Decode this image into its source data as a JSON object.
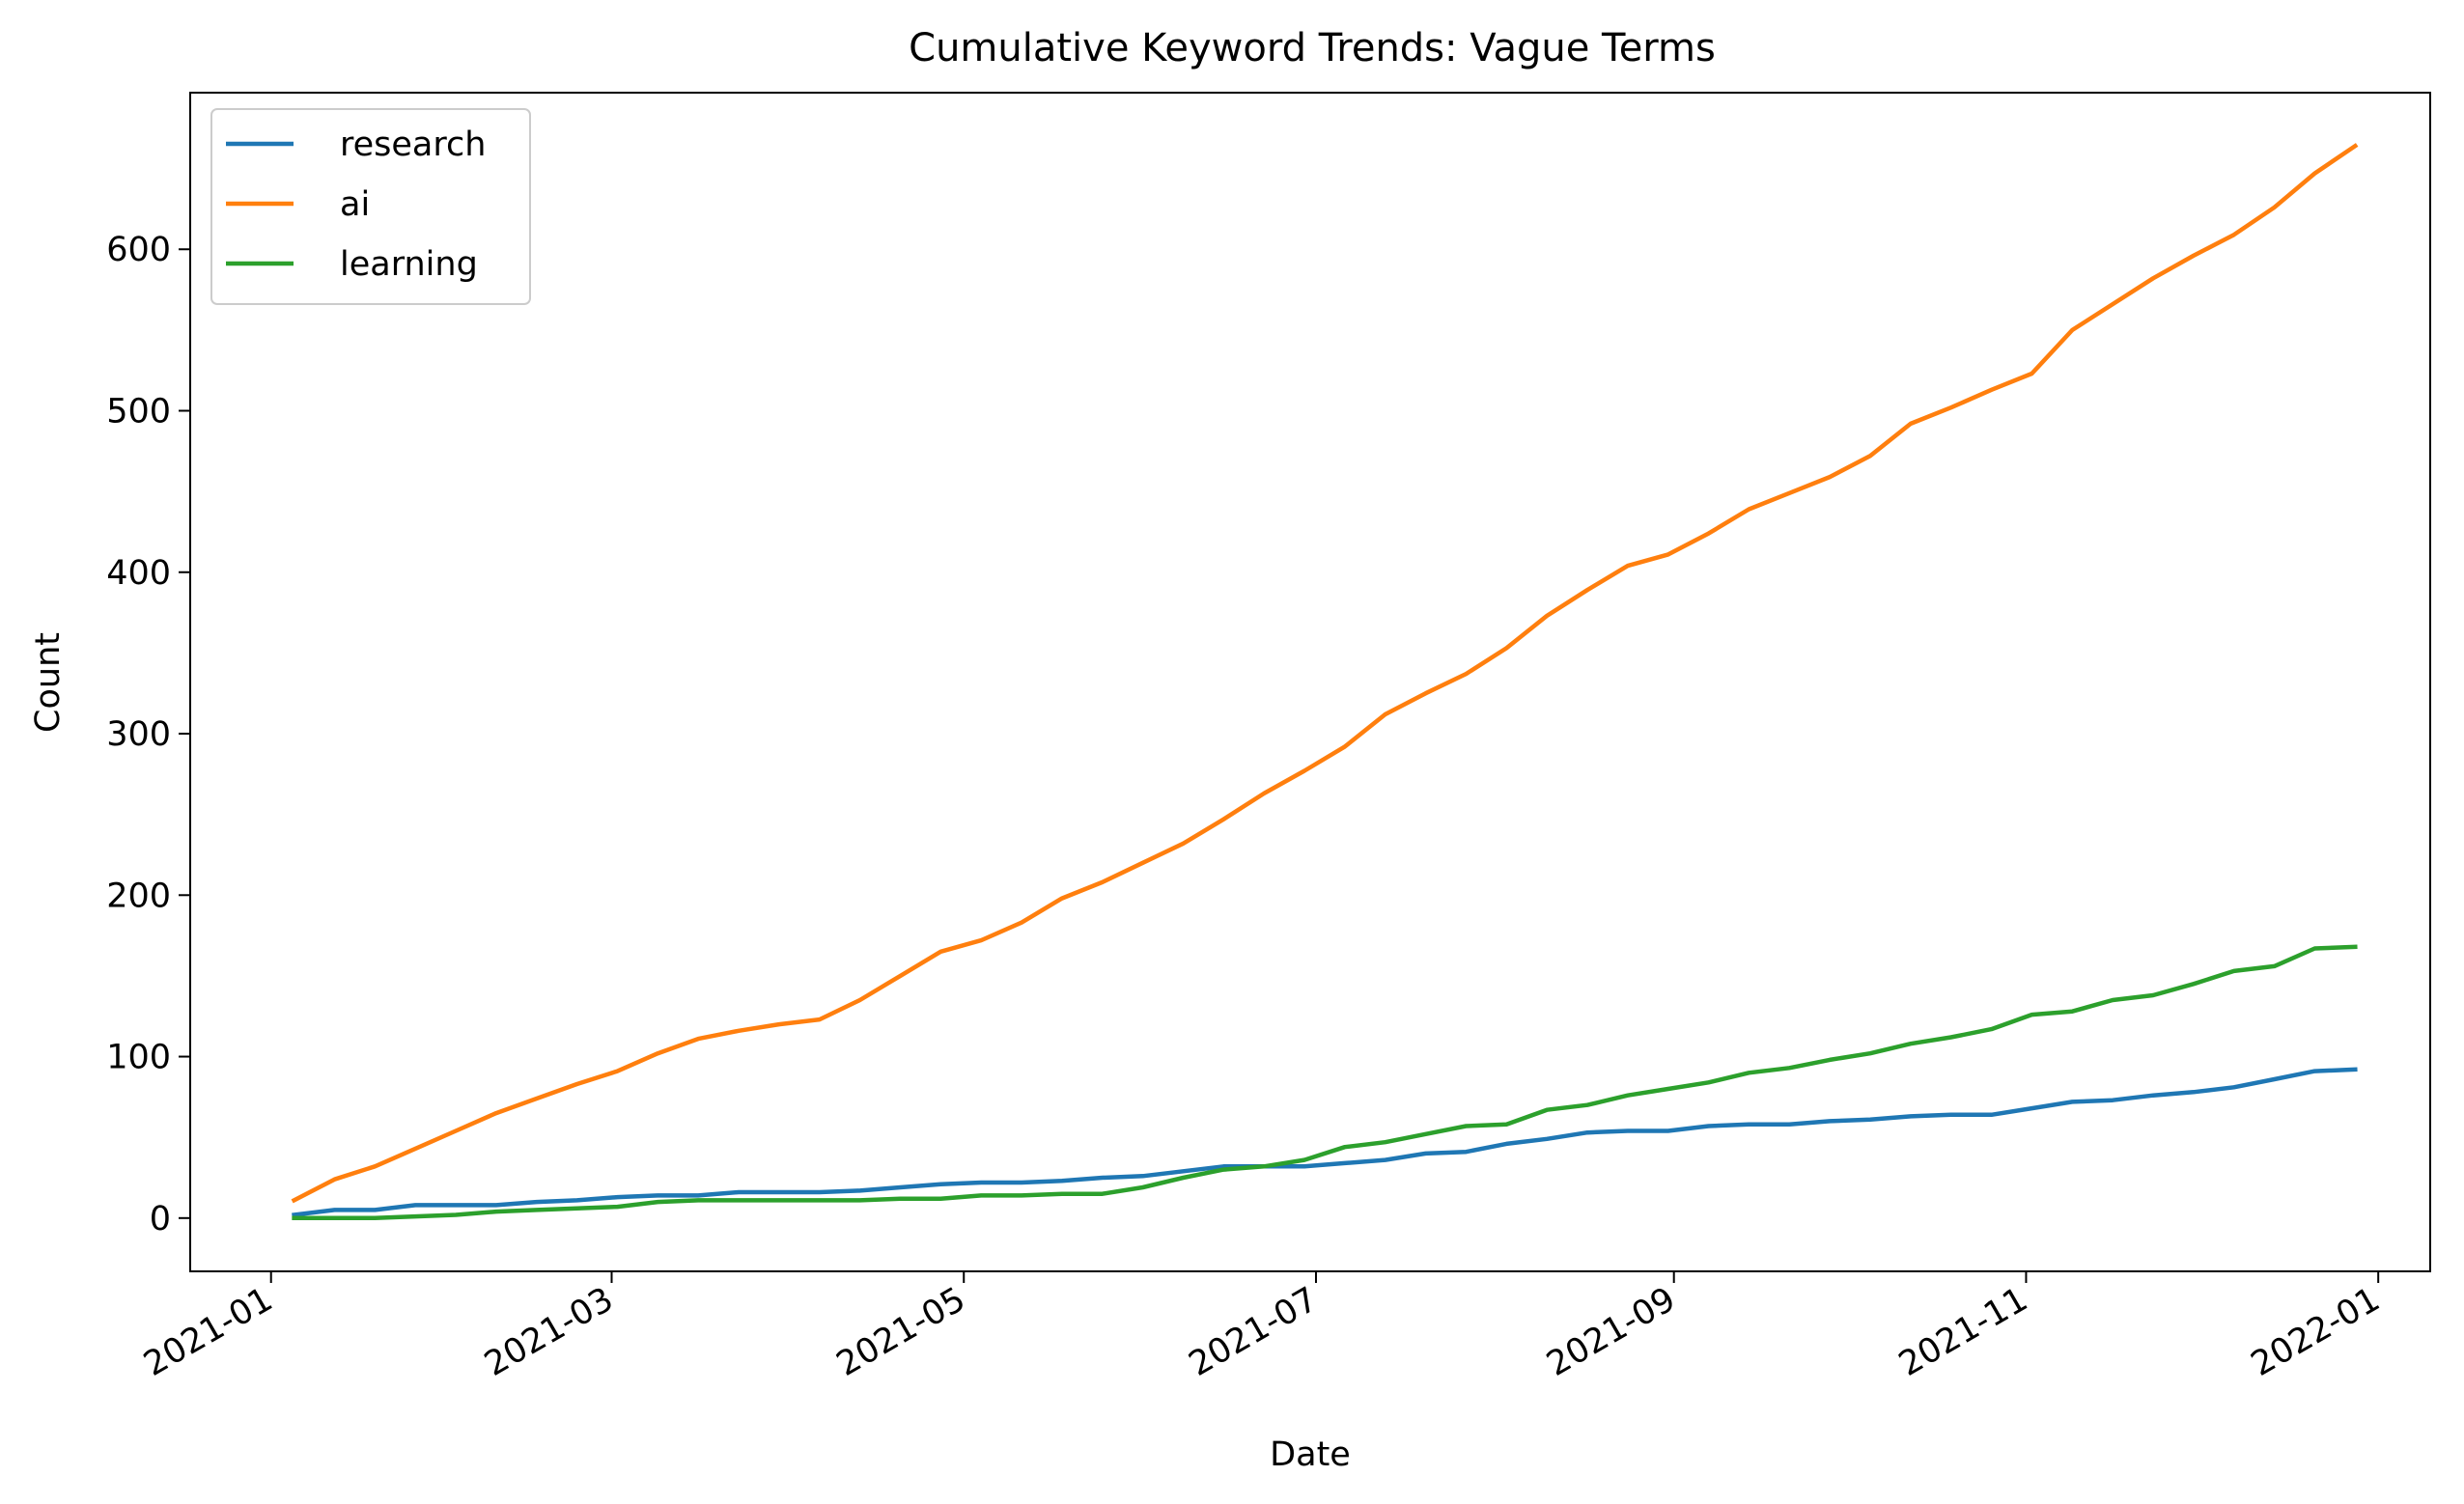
{
  "chart_data": {
    "type": "line",
    "title": "Cumulative Keyword Trends: Vague Terms",
    "xlabel": "Date",
    "ylabel": "Count",
    "x_scale": "date",
    "xlim": [
      "2020-12-18",
      "2022-01-10"
    ],
    "ylim": [
      -33,
      697
    ],
    "x_ticks": [
      "2021-01-01",
      "2021-03-01",
      "2021-05-01",
      "2021-07-01",
      "2021-09-01",
      "2021-11-01",
      "2022-01-01"
    ],
    "x_tick_labels": [
      "2021-01",
      "2021-03",
      "2021-05",
      "2021-07",
      "2021-09",
      "2021-11",
      "2022-01"
    ],
    "y_ticks": [
      0,
      100,
      200,
      300,
      400,
      500,
      600
    ],
    "y_tick_labels": [
      "0",
      "100",
      "200",
      "300",
      "400",
      "500",
      "600"
    ],
    "grid": false,
    "legend_position": "upper-left",
    "x": [
      "2021-01-05",
      "2021-01-12",
      "2021-01-19",
      "2021-01-26",
      "2021-02-02",
      "2021-02-09",
      "2021-02-16",
      "2021-02-23",
      "2021-03-02",
      "2021-03-09",
      "2021-03-16",
      "2021-03-23",
      "2021-03-30",
      "2021-04-06",
      "2021-04-13",
      "2021-04-20",
      "2021-04-27",
      "2021-05-04",
      "2021-05-11",
      "2021-05-18",
      "2021-05-25",
      "2021-06-01",
      "2021-06-08",
      "2021-06-15",
      "2021-06-22",
      "2021-06-29",
      "2021-07-06",
      "2021-07-13",
      "2021-07-20",
      "2021-07-27",
      "2021-08-03",
      "2021-08-10",
      "2021-08-17",
      "2021-08-24",
      "2021-08-31",
      "2021-09-07",
      "2021-09-14",
      "2021-09-21",
      "2021-09-28",
      "2021-10-05",
      "2021-10-12",
      "2021-10-19",
      "2021-10-26",
      "2021-11-02",
      "2021-11-09",
      "2021-11-16",
      "2021-11-23",
      "2021-11-30",
      "2021-12-07",
      "2021-12-14",
      "2021-12-21",
      "2021-12-28"
    ],
    "series": [
      {
        "name": "research",
        "color": "#1f77b4",
        "values": [
          2,
          5,
          5,
          8,
          8,
          8,
          10,
          11,
          13,
          14,
          14,
          16,
          16,
          16,
          17,
          19,
          21,
          22,
          22,
          23,
          25,
          26,
          29,
          32,
          32,
          32,
          34,
          36,
          40,
          41,
          46,
          49,
          53,
          54,
          54,
          57,
          58,
          58,
          60,
          61,
          63,
          64,
          64,
          68,
          72,
          73,
          76,
          78,
          81,
          86,
          91,
          92
        ]
      },
      {
        "name": "ai",
        "color": "#ff7f0e",
        "values": [
          11,
          24,
          32,
          43,
          54,
          65,
          74,
          83,
          91,
          102,
          111,
          116,
          120,
          123,
          135,
          150,
          165,
          172,
          183,
          198,
          208,
          220,
          232,
          247,
          263,
          277,
          292,
          312,
          325,
          337,
          353,
          373,
          389,
          404,
          411,
          424,
          439,
          449,
          459,
          472,
          492,
          502,
          513,
          523,
          550,
          566,
          582,
          596,
          609,
          626,
          647,
          664
        ]
      },
      {
        "name": "learning",
        "color": "#2ca02c",
        "values": [
          0,
          0,
          0,
          1,
          2,
          4,
          5,
          6,
          7,
          10,
          11,
          11,
          11,
          11,
          11,
          12,
          12,
          14,
          14,
          15,
          15,
          19,
          25,
          30,
          32,
          36,
          44,
          47,
          52,
          57,
          58,
          67,
          70,
          76,
          80,
          84,
          90,
          93,
          98,
          102,
          108,
          112,
          117,
          126,
          128,
          135,
          138,
          145,
          153,
          156,
          167,
          168
        ]
      }
    ]
  }
}
